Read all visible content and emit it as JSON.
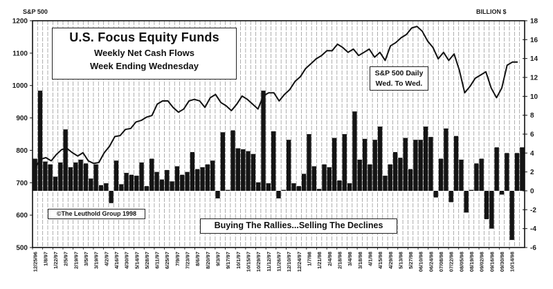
{
  "chart_data": {
    "type": "bar+line",
    "title": "U.S. Focus Equity Funds",
    "subtitle_lines": [
      "Weekly Net Cash Flows",
      "Week Ending Wednesday"
    ],
    "left_axis": {
      "label": "S&P 500",
      "range": [
        500,
        1200
      ],
      "ticks": [
        1200,
        1100,
        1000,
        900,
        800,
        700,
        600,
        500
      ]
    },
    "right_axis": {
      "label": "BILLION $",
      "range": [
        -6,
        18
      ],
      "ticks": [
        18,
        16,
        14,
        12,
        10,
        8,
        6,
        4,
        2,
        0,
        -2,
        -4,
        -6
      ]
    },
    "x_tick_labels": [
      "12/25/96",
      "1/8/97",
      "1/22/97",
      "2/5/97",
      "2/19/97",
      "3/5/97",
      "3/19/97",
      "4/2/97",
      "4/16/97",
      "4/30/97",
      "5/14/97",
      "5/28/97",
      "6/11/97",
      "6/25/97",
      "7/9/97",
      "7/23/97",
      "8/6/97",
      "8/20/97",
      "9/3/97",
      "9/17/97",
      "10/1/97",
      "10/15/97",
      "10/29/97",
      "11/12/97",
      "11/26/97",
      "12/10/97",
      "12/24/97",
      "1/7/98",
      "1/21/98",
      "2/4/98",
      "2/18/98",
      "3/4/98",
      "3/18/98",
      "4/1/98",
      "4/15/98",
      "4/29/98",
      "5/13/98",
      "5/27/98",
      "06/10/98",
      "06/24/98",
      "07/08/98",
      "07/22/98",
      "08/05/98",
      "08/19/98",
      "09/02/98",
      "09/16/98",
      "09/30/98",
      "10/14/98"
    ],
    "series": [
      {
        "name": "Weekly Net Cash Flows (Billion $)",
        "axis": "right",
        "type": "bar",
        "values": [
          3.4,
          10.6,
          3.1,
          2.8,
          1.5,
          3.0,
          6.5,
          2.5,
          3.0,
          3.3,
          2.9,
          1.3,
          2.8,
          0.6,
          0.8,
          -1.3,
          3.2,
          0.7,
          1.9,
          1.7,
          1.6,
          3.0,
          0.5,
          3.4,
          2.0,
          1.2,
          2.2,
          1.0,
          2.6,
          1.7,
          2.0,
          4.1,
          2.3,
          2.5,
          2.8,
          3.2,
          -0.8,
          6.2,
          0.1,
          6.4,
          4.5,
          4.4,
          4.2,
          3.9,
          0.9,
          10.6,
          0.8,
          6.3,
          -0.8,
          0.1,
          5.4,
          0.8,
          0.5,
          1.8,
          6.0,
          2.6,
          0.2,
          2.8,
          2.5,
          5.6,
          1.1,
          6.0,
          0.8,
          8.4,
          3.3,
          5.5,
          2.8,
          5.4,
          6.8,
          1.6,
          2.8,
          4.1,
          3.5,
          5.6,
          2.3,
          5.4,
          5.4,
          6.8,
          5.7,
          -0.7,
          3.4,
          6.6,
          -1.2,
          5.8,
          3.3,
          -2.3,
          0.1,
          2.9,
          3.4,
          -3.0,
          -4.0,
          4.6,
          -0.4,
          4.0,
          -5.2,
          4.0,
          4.6
        ]
      },
      {
        "name": "S&P 500 Daily Wed. To Wed.",
        "axis": "left",
        "type": "line",
        "values": [
          750,
          770,
          780,
          765,
          790,
          800,
          808,
          790,
          785,
          790,
          770,
          757,
          765,
          790,
          815,
          840,
          848,
          862,
          870,
          885,
          895,
          900,
          910,
          940,
          955,
          950,
          935,
          915,
          930,
          950,
          960,
          950,
          935,
          960,
          975,
          945,
          940,
          920,
          945,
          965,
          960,
          940,
          930,
          965,
          980,
          975,
          955,
          970,
          990,
          1010,
          1030,
          1050,
          1070,
          1080,
          1095,
          1105,
          1110,
          1125,
          1120,
          1100,
          1115,
          1090,
          1105,
          1110,
          1090,
          1100,
          1080,
          1120,
          1135,
          1145,
          1160,
          1175,
          1185,
          1165,
          1140,
          1115,
          1085,
          1100,
          1080,
          1095,
          1050,
          975,
          1000,
          1020,
          1035,
          1040,
          995,
          960,
          995,
          1060,
          1075,
          1070
        ]
      }
    ],
    "annotations": [
      "S&P 500 Daily Wed. To Wed.",
      "©The Leuthold Group 1998",
      "Buying The Rallies...Selling The Declines"
    ],
    "grid": "vertical-dashed",
    "legend_position": "inset"
  },
  "labels": {
    "left_axis_title": "S&P 500",
    "right_axis_title": "BILLION $",
    "title_main": "U.S. Focus Equity Funds",
    "title_sub1": "Weekly Net Cash Flows",
    "title_sub2": "Week Ending Wednesday",
    "legend_line1": "S&P 500 Daily",
    "legend_line2": "Wed. To Wed.",
    "copyright": "©The Leuthold Group 1998",
    "caption": "Buying The Rallies...Selling The Declines"
  },
  "colors": {
    "bar": "#141414",
    "line": "#111111",
    "grid": "#9a9a9a",
    "axis": "#111111",
    "background": "#ffffff"
  }
}
